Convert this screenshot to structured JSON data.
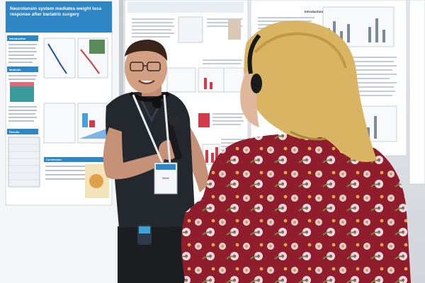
{
  "scene": {
    "poster_left": {
      "title": "Neurotensin system mediates weight loss response after bariatric surgery",
      "sections": [
        "Introduction",
        "Methods",
        "Results",
        "Conclusion"
      ]
    },
    "poster_right_heading": "Introduction",
    "badge_name": "Name"
  }
}
